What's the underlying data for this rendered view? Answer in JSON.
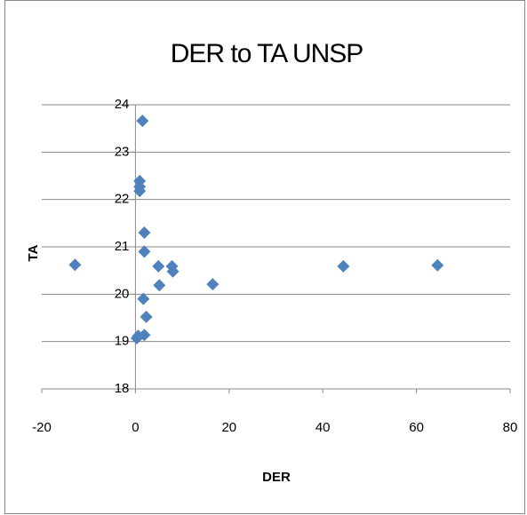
{
  "chart_data": {
    "type": "scatter",
    "title": "DER to TA  UNSP",
    "x_label": "DER",
    "y_label": "TA",
    "color": "#4f81bd",
    "grid": true,
    "xlim": [
      -20,
      80
    ],
    "xticks": [
      -20,
      0,
      20,
      40,
      60,
      80
    ],
    "ylim": [
      18,
      24
    ],
    "yticks": [
      18,
      19,
      20,
      21,
      22,
      23,
      24
    ],
    "x": [
      -12.9,
      1.5,
      0.9,
      0.9,
      0.9,
      1.9,
      1.9,
      4.9,
      7.8,
      8.0,
      5.1,
      16.5,
      44.4,
      64.5,
      1.7,
      2.3,
      1.9,
      0.6,
      0.3
    ],
    "values": [
      20.62,
      23.66,
      22.39,
      22.27,
      22.18,
      21.3,
      20.9,
      20.59,
      20.59,
      20.48,
      20.19,
      20.21,
      20.59,
      20.61,
      19.9,
      19.52,
      19.14,
      19.12,
      19.07
    ]
  }
}
